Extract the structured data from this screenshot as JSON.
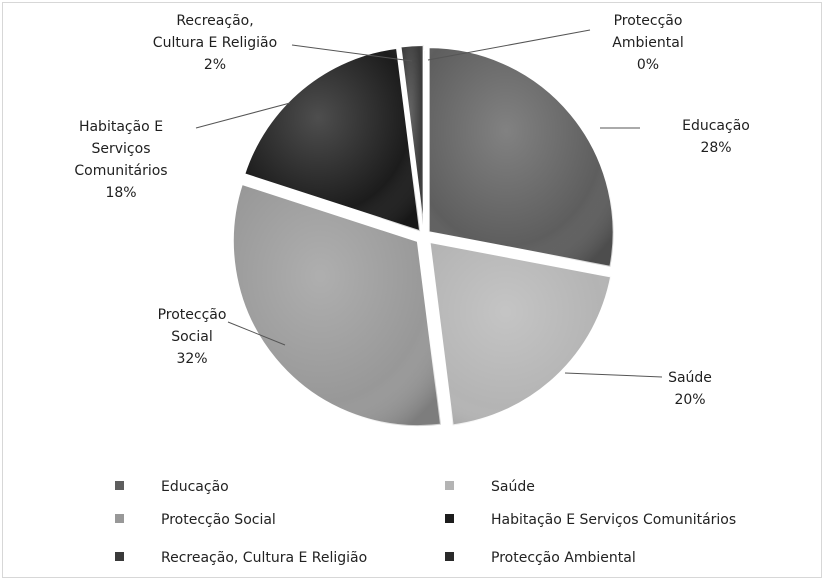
{
  "chart_data": {
    "type": "pie",
    "title": "",
    "slices": [
      {
        "name": "Educação",
        "value": 28,
        "label_lines": [
          "Educação"
        ],
        "color": "#5e5e5e"
      },
      {
        "name": "Saúde",
        "value": 20,
        "label_lines": [
          "Saúde"
        ],
        "color": "#b4b4b4"
      },
      {
        "name": "Protecção Social",
        "value": 32,
        "label_lines": [
          "Protecção",
          "Social"
        ],
        "color": "#989898"
      },
      {
        "name": "Habitação E Serviços Comunitários",
        "value": 18,
        "label_lines": [
          "Habitação E",
          "Serviços",
          "Comunitários"
        ],
        "color": "#1c1c1c"
      },
      {
        "name": "Recreação, Cultura E Religião",
        "value": 2,
        "label_lines": [
          "Recreação,",
          "Cultura E Religião"
        ],
        "color": "#3a3a3a"
      },
      {
        "name": "Protecção Ambiental",
        "value": 0,
        "label_lines": [
          "Protecção",
          "Ambiental"
        ],
        "color": "#2a2a2a"
      }
    ],
    "percent_labels": [
      "28%",
      "20%",
      "32%",
      "18%",
      "2%",
      "0%"
    ],
    "legend_position": "bottom",
    "exploded": true
  }
}
